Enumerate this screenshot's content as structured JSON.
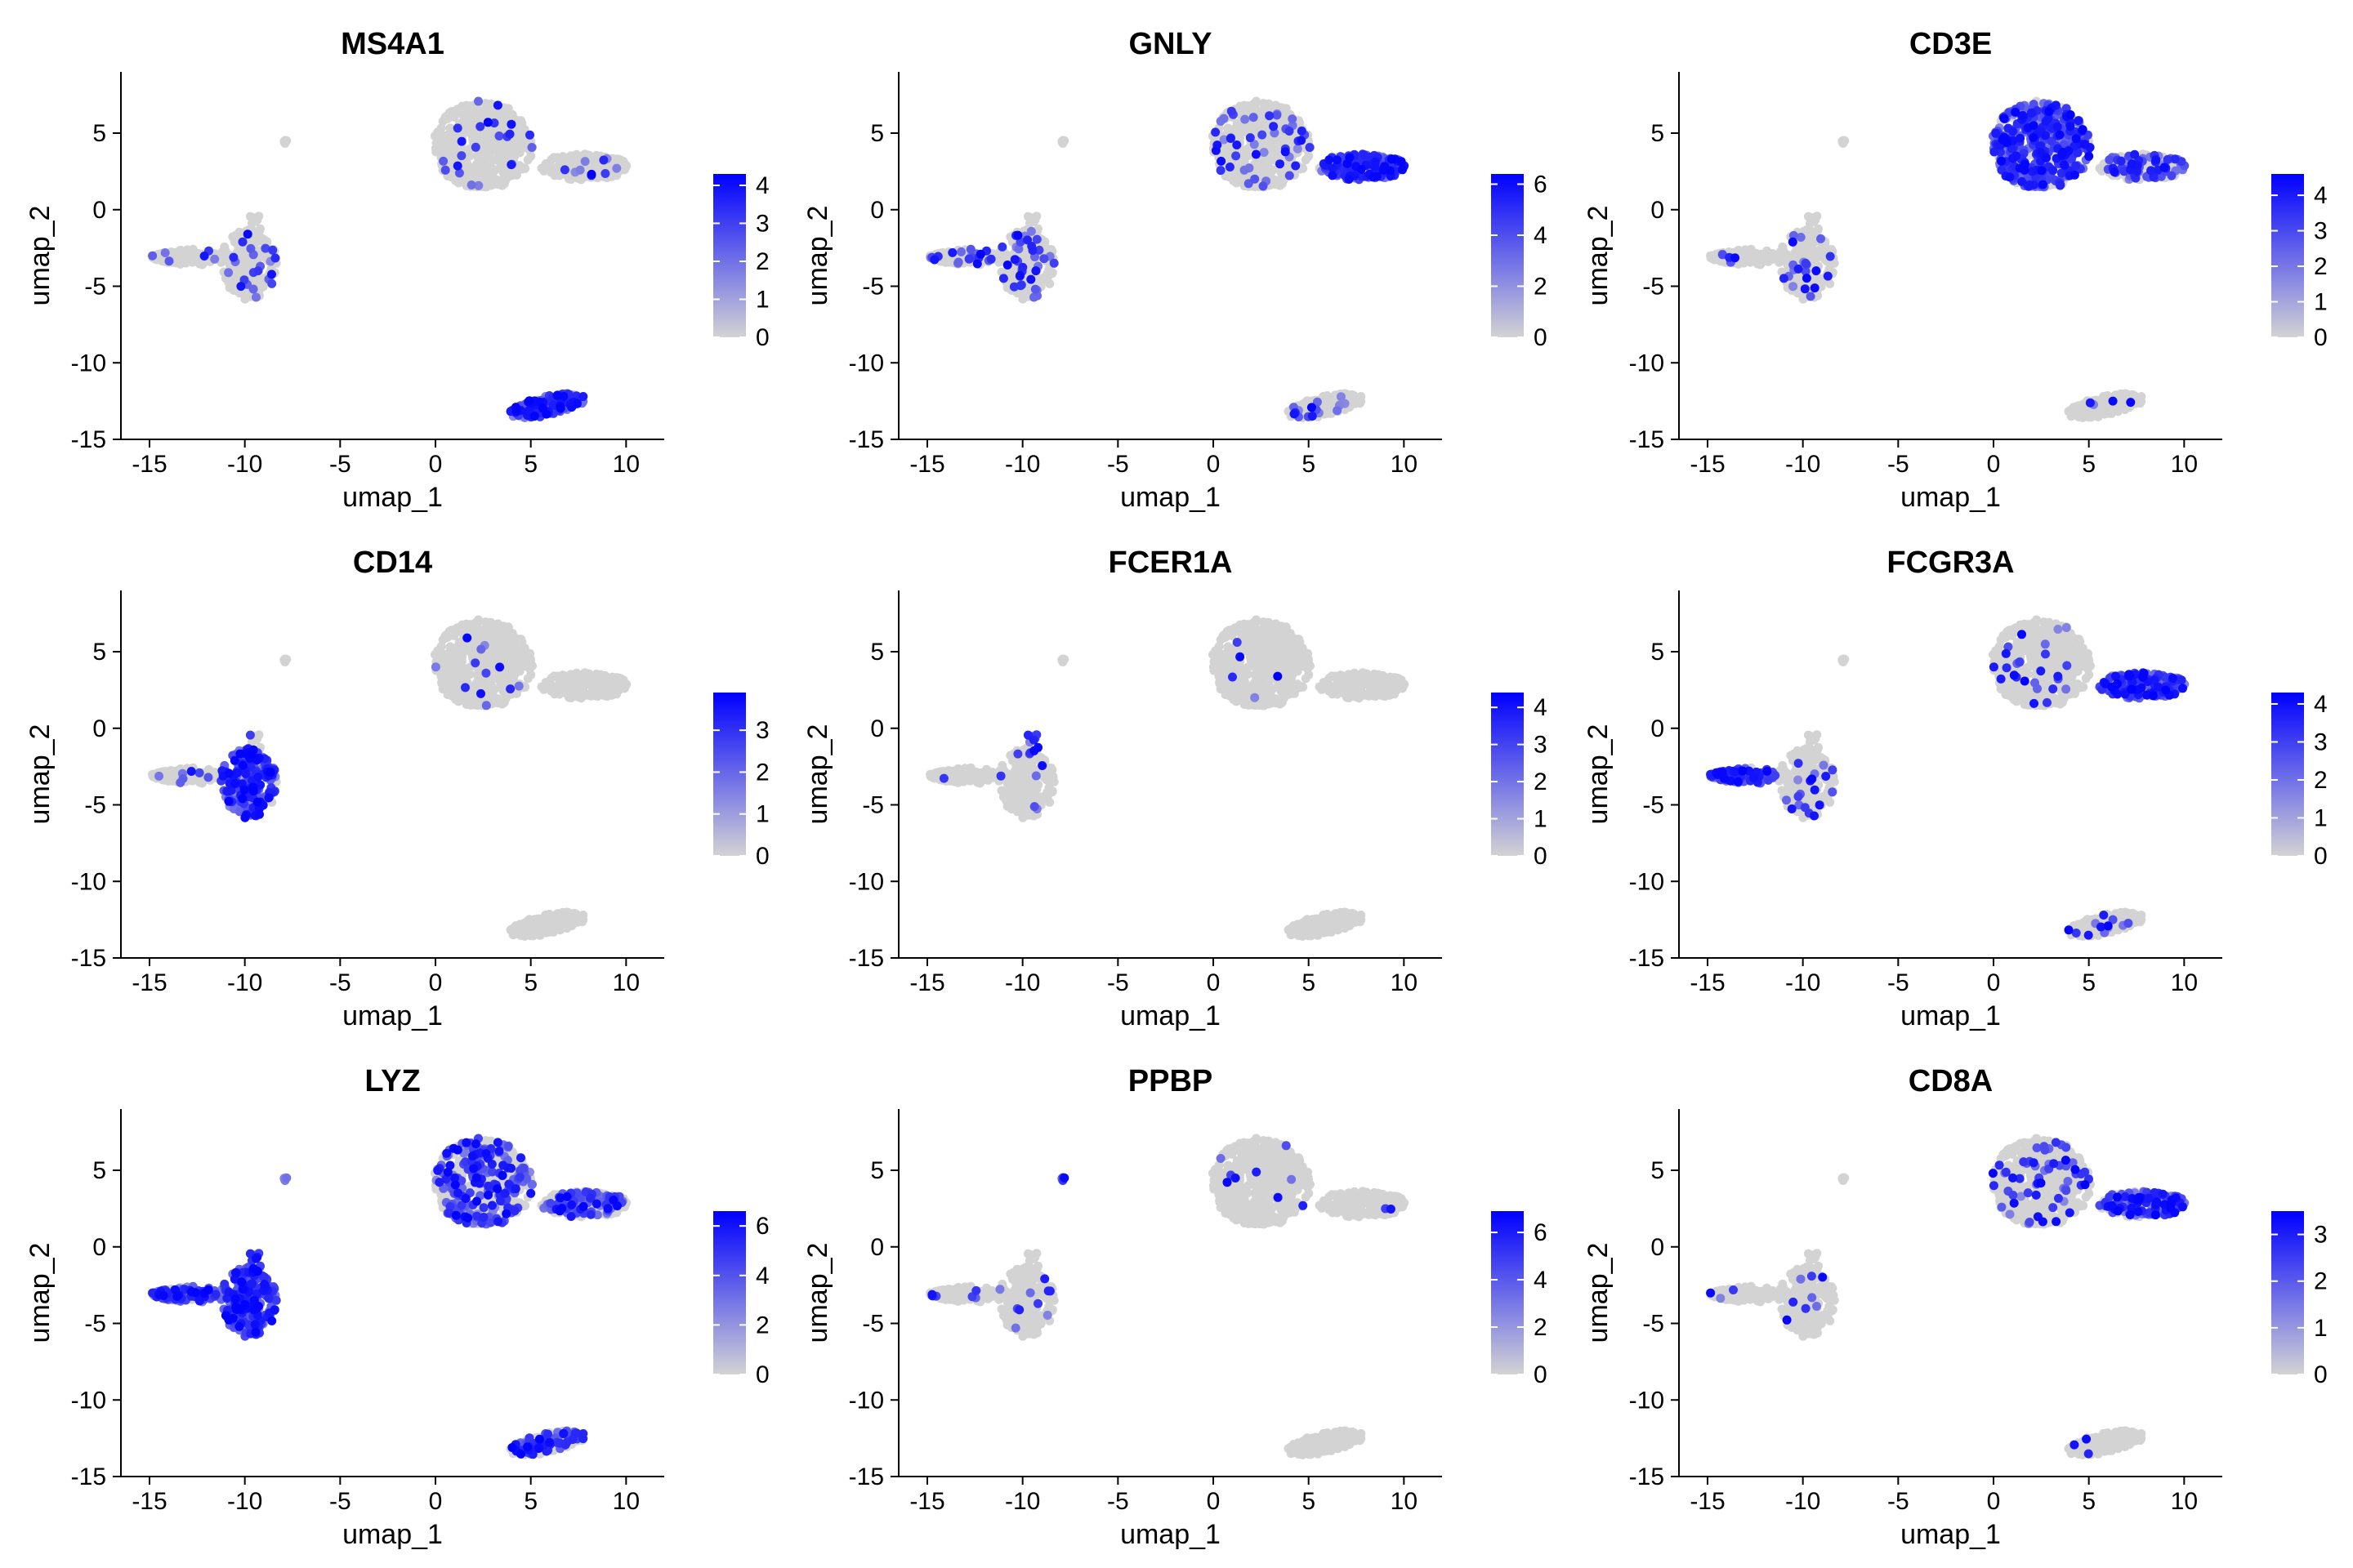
{
  "chart_data": [
    {
      "type": "scatter",
      "title": "MS4A1",
      "xlabel": "umap_1",
      "ylabel": "umap_2",
      "xlim": [
        -16.5,
        12
      ],
      "ylim": [
        -15,
        9
      ],
      "xticks": [
        -15,
        -10,
        -5,
        0,
        5,
        10
      ],
      "yticks": [
        5,
        0,
        -5,
        -10,
        -15
      ],
      "colorbar": {
        "min": 0,
        "max": 4.3,
        "ticks": [
          0,
          1,
          2,
          3,
          4
        ],
        "low_color": "#d3d3d3",
        "high_color": "#0000ff"
      },
      "cluster_expression": {
        "tcells": 0.05,
        "nk_tip": 0.05,
        "mono_left": 0.05,
        "mono_right": 0.08,
        "platelet": 0,
        "dc_stub": 0,
        "bcells": 0.85
      },
      "grid": false
    },
    {
      "type": "scatter",
      "title": "GNLY",
      "xlabel": "umap_1",
      "ylabel": "umap_2",
      "xlim": [
        -16.5,
        12
      ],
      "ylim": [
        -15,
        9
      ],
      "xticks": [
        -15,
        -10,
        -5,
        0,
        5,
        10
      ],
      "yticks": [
        5,
        0,
        -5,
        -10,
        -15
      ],
      "colorbar": {
        "min": 0,
        "max": 6.4,
        "ticks": [
          0,
          2,
          4,
          6
        ],
        "low_color": "#d3d3d3",
        "high_color": "#0000ff"
      },
      "cluster_expression": {
        "tcells": 0.12,
        "nk_tip": 0.85,
        "mono_left": 0.15,
        "mono_right": 0.15,
        "platelet": 0,
        "dc_stub": 0,
        "bcells": 0.08
      },
      "grid": false
    },
    {
      "type": "scatter",
      "title": "CD3E",
      "xlabel": "umap_1",
      "ylabel": "umap_2",
      "xlim": [
        -16.5,
        12
      ],
      "ylim": [
        -15,
        9
      ],
      "xticks": [
        -15,
        -10,
        -5,
        0,
        5,
        10
      ],
      "yticks": [
        5,
        0,
        -5,
        -10,
        -15
      ],
      "colorbar": {
        "min": 0,
        "max": 4.6,
        "ticks": [
          0,
          1,
          2,
          3,
          4
        ],
        "low_color": "#d3d3d3",
        "high_color": "#0000ff"
      },
      "cluster_expression": {
        "tcells": 0.75,
        "nk_tip": 0.35,
        "mono_left": 0.08,
        "mono_right": 0.1,
        "platelet": 0,
        "dc_stub": 0,
        "bcells": 0.05
      },
      "grid": false
    },
    {
      "type": "scatter",
      "title": "CD14",
      "xlabel": "umap_1",
      "ylabel": "umap_2",
      "xlim": [
        -16.5,
        12
      ],
      "ylim": [
        -15,
        9
      ],
      "xticks": [
        -15,
        -10,
        -5,
        0,
        5,
        10
      ],
      "yticks": [
        5,
        0,
        -5,
        -10,
        -15
      ],
      "colorbar": {
        "min": 0,
        "max": 3.9,
        "ticks": [
          0,
          1,
          2,
          3
        ],
        "low_color": "#d3d3d3",
        "high_color": "#0000ff"
      },
      "cluster_expression": {
        "tcells": 0.03,
        "nk_tip": 0,
        "mono_left": 0.08,
        "mono_right": 0.8,
        "platelet": 0,
        "dc_stub": 0.2,
        "bcells": 0
      },
      "grid": false
    },
    {
      "type": "scatter",
      "title": "FCER1A",
      "xlabel": "umap_1",
      "ylabel": "umap_2",
      "xlim": [
        -16.5,
        12
      ],
      "ylim": [
        -15,
        9
      ],
      "xticks": [
        -15,
        -10,
        -5,
        0,
        5,
        10
      ],
      "yticks": [
        5,
        0,
        -5,
        -10,
        -15
      ],
      "colorbar": {
        "min": 0,
        "max": 4.4,
        "ticks": [
          0,
          1,
          2,
          3,
          4
        ],
        "low_color": "#d3d3d3",
        "high_color": "#0000ff"
      },
      "cluster_expression": {
        "tcells": 0.02,
        "nk_tip": 0,
        "mono_left": 0.02,
        "mono_right": 0.02,
        "platelet": 0,
        "dc_stub": 0.85,
        "bcells": 0
      },
      "grid": false
    },
    {
      "type": "scatter",
      "title": "FCGR3A",
      "xlabel": "umap_1",
      "ylabel": "umap_2",
      "xlim": [
        -16.5,
        12
      ],
      "ylim": [
        -15,
        9
      ],
      "xticks": [
        -15,
        -10,
        -5,
        0,
        5,
        10
      ],
      "yticks": [
        5,
        0,
        -5,
        -10,
        -15
      ],
      "colorbar": {
        "min": 0,
        "max": 4.3,
        "ticks": [
          0,
          1,
          2,
          3,
          4
        ],
        "low_color": "#d3d3d3",
        "high_color": "#0000ff"
      },
      "cluster_expression": {
        "tcells": 0.05,
        "nk_tip": 0.8,
        "mono_left": 0.85,
        "mono_right": 0.08,
        "platelet": 0,
        "dc_stub": 0,
        "bcells": 0.05
      },
      "grid": false
    },
    {
      "type": "scatter",
      "title": "LYZ",
      "xlabel": "umap_1",
      "ylabel": "umap_2",
      "xlim": [
        -16.5,
        12
      ],
      "ylim": [
        -15,
        9
      ],
      "xticks": [
        -15,
        -10,
        -5,
        0,
        5,
        10
      ],
      "yticks": [
        5,
        0,
        -5,
        -10,
        -15
      ],
      "colorbar": {
        "min": 0,
        "max": 6.6,
        "ticks": [
          0,
          2,
          4,
          6
        ],
        "low_color": "#d3d3d3",
        "high_color": "#0000ff"
      },
      "cluster_expression": {
        "tcells": 0.4,
        "nk_tip": 0.4,
        "mono_left": 0.75,
        "mono_right": 0.95,
        "platelet": 0.6,
        "dc_stub": 0.9,
        "bcells": 0.45
      },
      "grid": false
    },
    {
      "type": "scatter",
      "title": "PPBP",
      "xlabel": "umap_1",
      "ylabel": "umap_2",
      "xlim": [
        -16.5,
        12
      ],
      "ylim": [
        -15,
        9
      ],
      "xticks": [
        -15,
        -10,
        -5,
        0,
        5,
        10
      ],
      "yticks": [
        5,
        0,
        -5,
        -10,
        -15
      ],
      "colorbar": {
        "min": 0,
        "max": 6.9,
        "ticks": [
          0,
          2,
          4,
          6
        ],
        "low_color": "#d3d3d3",
        "high_color": "#0000ff"
      },
      "cluster_expression": {
        "tcells": 0.02,
        "nk_tip": 0.02,
        "mono_left": 0.04,
        "mono_right": 0.04,
        "platelet": 1.0,
        "dc_stub": 0,
        "bcells": 0
      },
      "grid": false
    },
    {
      "type": "scatter",
      "title": "CD8A",
      "xlabel": "umap_1",
      "ylabel": "umap_2",
      "xlim": [
        -16.5,
        12
      ],
      "ylim": [
        -15,
        9
      ],
      "xticks": [
        -15,
        -10,
        -5,
        0,
        5,
        10
      ],
      "yticks": [
        5,
        0,
        -5,
        -10,
        -15
      ],
      "colorbar": {
        "min": 0,
        "max": 3.5,
        "ticks": [
          0,
          1,
          2,
          3
        ],
        "low_color": "#d3d3d3",
        "high_color": "#0000ff"
      },
      "cluster_expression": {
        "tcells": 0.12,
        "nk_tip": 0.55,
        "mono_left": 0.02,
        "mono_right": 0.02,
        "platelet": 0,
        "dc_stub": 0,
        "bcells": 0.02
      },
      "grid": false
    }
  ],
  "clusters": {
    "tcells": {
      "cx": 2.5,
      "cy": 4.2,
      "rx": 2.6,
      "ry": 2.9,
      "n": 500
    },
    "nk_tip": {
      "cx": 7.8,
      "cy": 2.8,
      "rx": 2.3,
      "ry": 0.85,
      "n": 200
    },
    "mono_left": {
      "cx": -13.2,
      "cy": -3.1,
      "rx": 1.8,
      "ry": 0.7,
      "n": 120
    },
    "mono_right": {
      "cx": -9.8,
      "cy": -3.6,
      "rx": 1.5,
      "ry": 2.3,
      "n": 240
    },
    "platelet": {
      "cx": -7.9,
      "cy": 4.45,
      "rx": 0.12,
      "ry": 0.12,
      "n": 6
    },
    "dc_stub": {
      "cx": -9.5,
      "cy": -0.9,
      "rx": 0.35,
      "ry": 1.0,
      "n": 12
    },
    "bcells": {
      "cx": 5.9,
      "cy": -12.8,
      "rx": 2.0,
      "ry": 0.65,
      "n": 170
    }
  }
}
